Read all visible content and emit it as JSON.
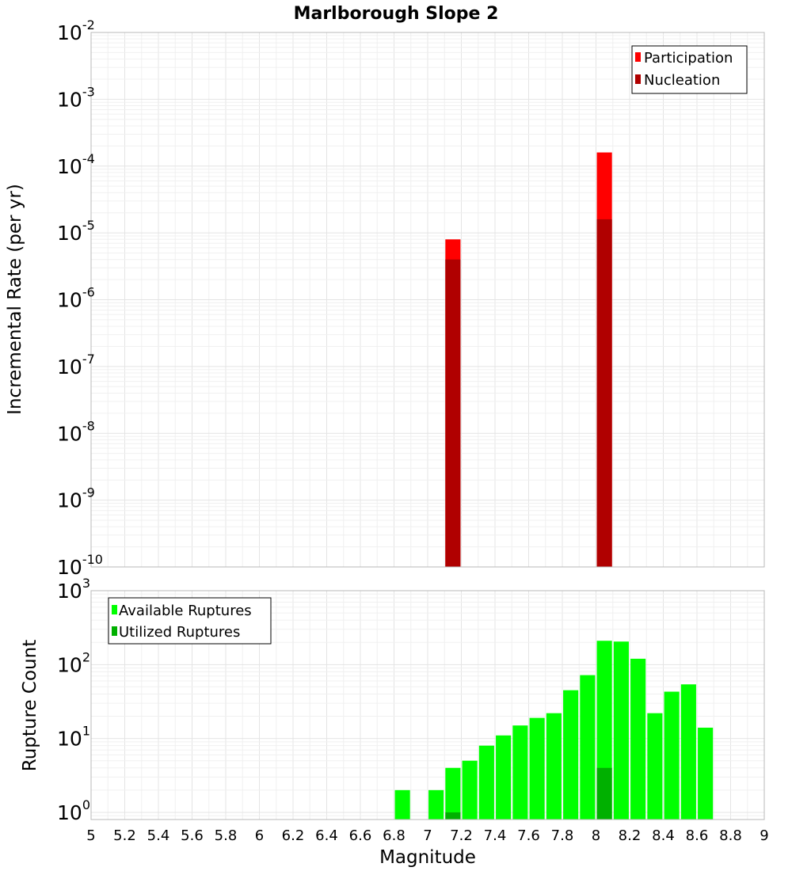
{
  "chart_data": [
    {
      "type": "bar",
      "title": "Marlborough Slope 2",
      "ylabel": "Incremental Rate (per yr)",
      "xlabel": "",
      "xlim": [
        5,
        9
      ],
      "ylim": [
        1e-10,
        0.01
      ],
      "yscale": "log",
      "ytick_labels": [
        {
          "base": "10",
          "exp": "-10"
        },
        {
          "base": "10",
          "exp": "-9"
        },
        {
          "base": "10",
          "exp": "-8"
        },
        {
          "base": "10",
          "exp": "-7"
        },
        {
          "base": "10",
          "exp": "-6"
        },
        {
          "base": "10",
          "exp": "-5"
        },
        {
          "base": "10",
          "exp": "-4"
        },
        {
          "base": "10",
          "exp": "-3"
        },
        {
          "base": "10",
          "exp": "-2"
        }
      ],
      "grid": true,
      "legend_position": "top-right",
      "bar_width": 0.09,
      "series": [
        {
          "name": "Participation",
          "color": "#ff0000",
          "x": [
            7.15,
            8.05
          ],
          "values": [
            8e-06,
            0.00016
          ]
        },
        {
          "name": "Nucleation",
          "color": "#b00000",
          "x": [
            7.15,
            8.05
          ],
          "values": [
            4e-06,
            1.6e-05
          ]
        }
      ]
    },
    {
      "type": "bar",
      "title": "",
      "ylabel": "Rupture Count",
      "xlabel": "Magnitude",
      "xlim": [
        5,
        9
      ],
      "ylim": [
        0.8,
        1000
      ],
      "yscale": "log",
      "ytick_labels": [
        {
          "base": "10",
          "exp": "0"
        },
        {
          "base": "10",
          "exp": "1"
        },
        {
          "base": "10",
          "exp": "2"
        },
        {
          "base": "10",
          "exp": "3"
        }
      ],
      "xticks": [
        "5",
        "5.2",
        "5.4",
        "5.6",
        "5.8",
        "6",
        "6.2",
        "6.4",
        "6.6",
        "6.8",
        "7",
        "7.2",
        "7.4",
        "7.6",
        "7.8",
        "8",
        "8.2",
        "8.4",
        "8.6",
        "8.8",
        "9"
      ],
      "grid": true,
      "legend_position": "top-left",
      "bar_width": 0.09,
      "series": [
        {
          "name": "Available Ruptures",
          "color": "#00ff00",
          "x": [
            6.85,
            7.05,
            7.15,
            7.25,
            7.35,
            7.45,
            7.55,
            7.65,
            7.75,
            7.85,
            7.95,
            8.05,
            8.15,
            8.25,
            8.35,
            8.45,
            8.55,
            8.65
          ],
          "values": [
            2,
            2,
            4,
            5,
            8,
            11,
            15,
            19,
            22,
            45,
            72,
            210,
            205,
            120,
            22,
            43,
            54,
            14
          ]
        },
        {
          "name": "Utilized Ruptures",
          "color": "#00b000",
          "x": [
            7.15,
            8.05
          ],
          "values": [
            1,
            4
          ]
        }
      ]
    }
  ]
}
